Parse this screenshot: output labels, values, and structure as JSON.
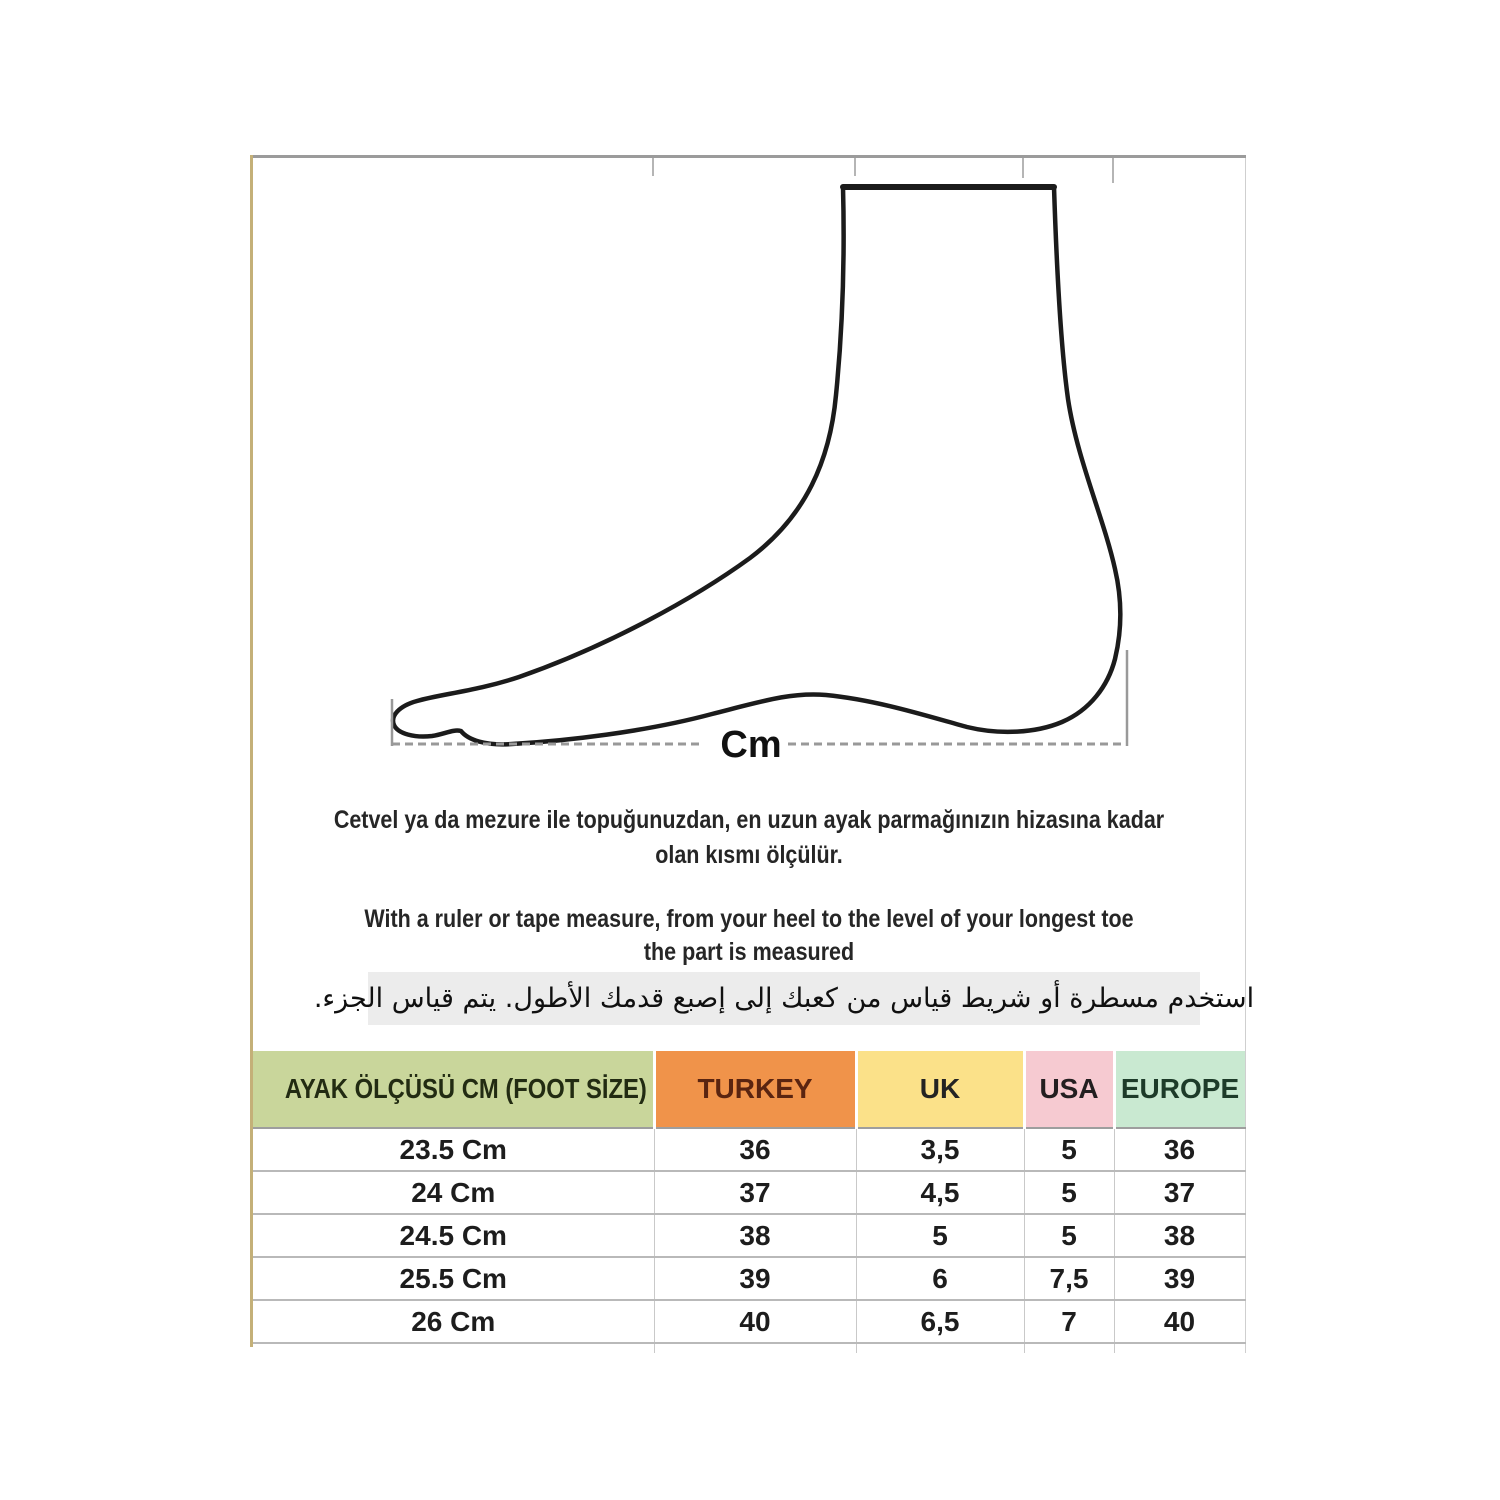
{
  "diagram": {
    "cm_label": "Cm"
  },
  "instructions": {
    "turkish_lines": [
      "Cetvel ya da mezure ile topuğunuzdan, en uzun ayak parmağınızın hizasına kadar",
      "olan kısmı ölçülür."
    ],
    "english_lines": [
      "With a ruler or tape measure, from your heel to the level of your longest toe",
      "the part is measured"
    ],
    "arabic": "استخدم مسطرة أو شريط قياس من كعبك إلى إصبع قدمك الأطول.  يتم قياس الجزء."
  },
  "size_table": {
    "columns": [
      {
        "label": "AYAK ÖLÇÜSÜ CM (FOOT SİZE)",
        "bg": "#c9d69b",
        "text_color": "#222b12"
      },
      {
        "label": "TURKEY",
        "bg": "#f0934a",
        "text_color": "#5a2410"
      },
      {
        "label": "UK",
        "bg": "#fbe189",
        "text_color": "#232323"
      },
      {
        "label": "USA",
        "bg": "#f6cad1",
        "text_color": "#231f20"
      },
      {
        "label": "EUROPE",
        "bg": "#c9e9d1",
        "text_color": "#1d3b29"
      }
    ],
    "rows": [
      [
        "23.5 Cm",
        "36",
        "3,5",
        "5",
        "36"
      ],
      [
        "24 Cm",
        "37",
        "4,5",
        "5",
        "37"
      ],
      [
        "24.5 Cm",
        "38",
        "5",
        "5",
        "38"
      ],
      [
        "25.5 Cm",
        "39",
        "6",
        "7,5",
        "39"
      ],
      [
        "26 Cm",
        "40",
        "6,5",
        "7",
        "40"
      ]
    ]
  },
  "colors": {
    "frame_top": "#9b9b9b",
    "frame_left": "#c4b078",
    "foot_outline": "#1b1b1b",
    "dashed_line": "#999999",
    "arabic_bg": "#ececec"
  }
}
